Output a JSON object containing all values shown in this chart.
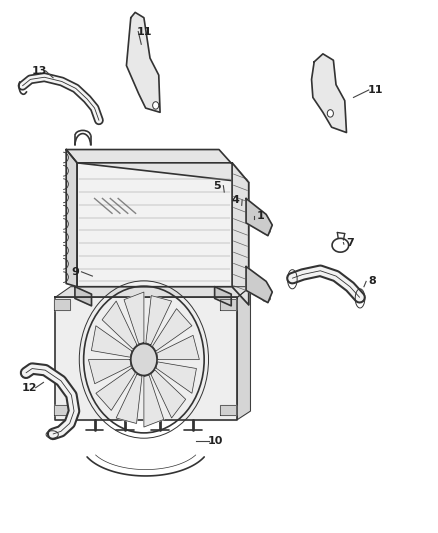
{
  "bg_color": "#ffffff",
  "line_color": "#333333",
  "label_color": "#222222",
  "fig_width": 4.38,
  "fig_height": 5.33,
  "dpi": 100
}
